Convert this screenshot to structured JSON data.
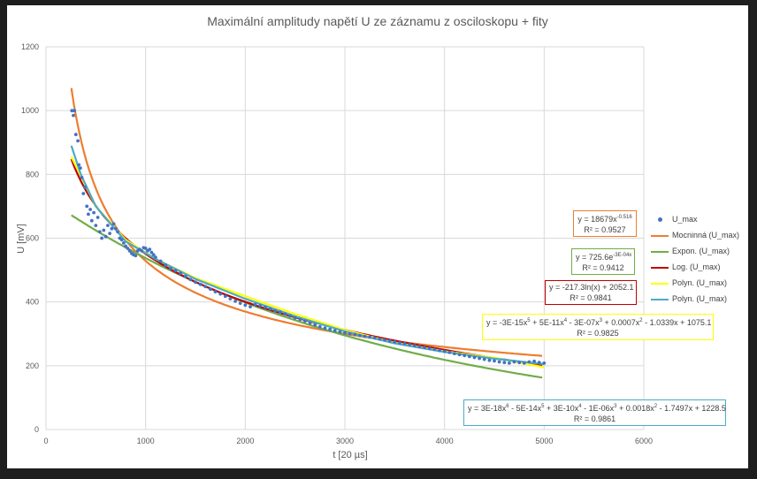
{
  "chart_data": {
    "type": "scatter",
    "title": "Maximální amplitudy napětí U ze záznamu z osciloskopu + fity",
    "xlabel": "t [20 µs]",
    "ylabel": "U [mV]",
    "xlim": [
      0,
      6000
    ],
    "ylim": [
      0,
      1200
    ],
    "x_ticks": [
      "0",
      "1000",
      "2000",
      "3000",
      "4000",
      "5000",
      "6000"
    ],
    "y_ticks": [
      "0",
      "200",
      "400",
      "600",
      "800",
      "1000",
      "1200"
    ],
    "grid": true,
    "legend_position": "right",
    "scatter_series": {
      "name": "U_max",
      "color": "#4472c4",
      "points": [
        [
          260,
          1000
        ],
        [
          275,
          985
        ],
        [
          285,
          1000
        ],
        [
          300,
          925
        ],
        [
          320,
          905
        ],
        [
          330,
          830
        ],
        [
          345,
          820
        ],
        [
          360,
          790
        ],
        [
          375,
          740
        ],
        [
          390,
          760
        ],
        [
          410,
          700
        ],
        [
          425,
          675
        ],
        [
          445,
          690
        ],
        [
          460,
          655
        ],
        [
          480,
          680
        ],
        [
          500,
          640
        ],
        [
          520,
          665
        ],
        [
          540,
          620
        ],
        [
          560,
          600
        ],
        [
          580,
          625
        ],
        [
          600,
          605
        ],
        [
          620,
          640
        ],
        [
          640,
          615
        ],
        [
          660,
          630
        ],
        [
          680,
          645
        ],
        [
          700,
          630
        ],
        [
          720,
          620
        ],
        [
          740,
          600
        ],
        [
          760,
          595
        ],
        [
          780,
          585
        ],
        [
          800,
          575
        ],
        [
          820,
          568
        ],
        [
          840,
          560
        ],
        [
          860,
          552
        ],
        [
          880,
          548
        ],
        [
          900,
          545
        ],
        [
          920,
          560
        ],
        [
          940,
          565
        ],
        [
          960,
          560
        ],
        [
          980,
          570
        ],
        [
          1000,
          568
        ],
        [
          1020,
          560
        ],
        [
          1040,
          565
        ],
        [
          1060,
          555
        ],
        [
          1080,
          548
        ],
        [
          1100,
          540
        ],
        [
          1150,
          528
        ],
        [
          1200,
          515
        ],
        [
          1250,
          505
        ],
        [
          1300,
          498
        ],
        [
          1350,
          490
        ],
        [
          1400,
          480
        ],
        [
          1450,
          470
        ],
        [
          1500,
          462
        ],
        [
          1550,
          455
        ],
        [
          1600,
          448
        ],
        [
          1650,
          440
        ],
        [
          1700,
          432
        ],
        [
          1750,
          425
        ],
        [
          1800,
          418
        ],
        [
          1850,
          410
        ],
        [
          1900,
          402
        ],
        [
          1950,
          396
        ],
        [
          2000,
          390
        ],
        [
          2050,
          385
        ],
        [
          2100,
          392
        ],
        [
          2150,
          388
        ],
        [
          2200,
          383
        ],
        [
          2250,
          378
        ],
        [
          2300,
          372
        ],
        [
          2350,
          368
        ],
        [
          2400,
          362
        ],
        [
          2450,
          356
        ],
        [
          2500,
          350
        ],
        [
          2550,
          345
        ],
        [
          2600,
          340
        ],
        [
          2650,
          334
        ],
        [
          2700,
          328
        ],
        [
          2750,
          322
        ],
        [
          2800,
          318
        ],
        [
          2850,
          314
        ],
        [
          2900,
          310
        ],
        [
          2950,
          306
        ],
        [
          3000,
          303
        ],
        [
          3050,
          300
        ],
        [
          3100,
          298
        ],
        [
          3150,
          295
        ],
        [
          3200,
          292
        ],
        [
          3250,
          290
        ],
        [
          3300,
          287
        ],
        [
          3350,
          284
        ],
        [
          3400,
          281
        ],
        [
          3450,
          278
        ],
        [
          3500,
          275
        ],
        [
          3550,
          272
        ],
        [
          3600,
          269
        ],
        [
          3650,
          266
        ],
        [
          3700,
          263
        ],
        [
          3750,
          260
        ],
        [
          3800,
          257
        ],
        [
          3850,
          254
        ],
        [
          3900,
          251
        ],
        [
          3950,
          248
        ],
        [
          4000,
          245
        ],
        [
          4050,
          242
        ],
        [
          4100,
          238
        ],
        [
          4150,
          235
        ],
        [
          4200,
          232
        ],
        [
          4250,
          229
        ],
        [
          4300,
          226
        ],
        [
          4350,
          223
        ],
        [
          4400,
          220
        ],
        [
          4450,
          217
        ],
        [
          4500,
          215
        ],
        [
          4550,
          212
        ],
        [
          4600,
          210
        ],
        [
          4650,
          208
        ],
        [
          4700,
          212
        ],
        [
          4750,
          210
        ],
        [
          4800,
          208
        ],
        [
          4850,
          212
        ],
        [
          4900,
          214
        ],
        [
          4950,
          210
        ],
        [
          5000,
          208
        ]
      ]
    },
    "fit_series": [
      {
        "name": "Mocninná (U_max)",
        "color": "#ed7d31",
        "kind": "power",
        "a": 18679,
        "b": -0.516,
        "x_range": [
          255,
          5000
        ]
      },
      {
        "name": "Expon. (U_max)",
        "color": "#70ad47",
        "kind": "exp",
        "a": 725.6,
        "b": -0.0003,
        "x_range": [
          255,
          5000
        ]
      },
      {
        "name": "Log. (U_max)",
        "color": "#c00000",
        "kind": "log",
        "a": -217.3,
        "b": 2052.1,
        "x_range": [
          255,
          5000
        ]
      },
      {
        "name": "Polyn. (U_max)",
        "color": "#ffff00",
        "kind": "points",
        "x_range": [
          255,
          5000
        ],
        "points": [
          [
            255,
            855
          ],
          [
            500,
            700
          ],
          [
            800,
            595
          ],
          [
            1100,
            535
          ],
          [
            1500,
            475
          ],
          [
            2000,
            418
          ],
          [
            2500,
            362
          ],
          [
            3000,
            312
          ],
          [
            3500,
            272
          ],
          [
            4000,
            245
          ],
          [
            4500,
            225
          ],
          [
            5000,
            195
          ]
        ]
      },
      {
        "name": "Polyn. (U_max)",
        "color": "#4bacc6",
        "kind": "points",
        "x_range": [
          255,
          5000
        ],
        "points": [
          [
            255,
            890
          ],
          [
            350,
            800
          ],
          [
            500,
            700
          ],
          [
            800,
            590
          ],
          [
            1100,
            535
          ],
          [
            1500,
            472
          ],
          [
            2000,
            410
          ],
          [
            2500,
            355
          ],
          [
            3000,
            308
          ],
          [
            3500,
            270
          ],
          [
            4000,
            243
          ],
          [
            4500,
            222
          ],
          [
            5000,
            205
          ]
        ]
      }
    ],
    "annotations": [
      {
        "eq_html": "y = 18679x<sup>-0.516</sup>",
        "r2": "R² = 0.9527",
        "border": "#ed7d31"
      },
      {
        "eq_html": "y = 725.6e<sup>-3E-04x</sup>",
        "r2": "R² = 0.9412",
        "border": "#70ad47"
      },
      {
        "eq_html": "y = -217.3ln(x) + 2052.1",
        "r2": "R² = 0.9841",
        "border": "#c00000"
      },
      {
        "eq_html": "y = -3E-15x<sup>5</sup> + 5E-11x<sup>4</sup> - 3E-07x<sup>3</sup> + 0.0007x<sup>2</sup> - 1.0339x + 1075.1",
        "r2": "R² = 0.9825",
        "border": "#ffff00"
      },
      {
        "eq_html": "y = 3E-18x<sup>6</sup> - 5E-14x<sup>5</sup> + 3E-10x<sup>4</sup> - 1E-06x<sup>3</sup> + 0.0018x<sup>2</sup> - 1.7497x + 1228.5",
        "r2": "R² = 0.9861",
        "border": "#4bacc6"
      }
    ]
  }
}
